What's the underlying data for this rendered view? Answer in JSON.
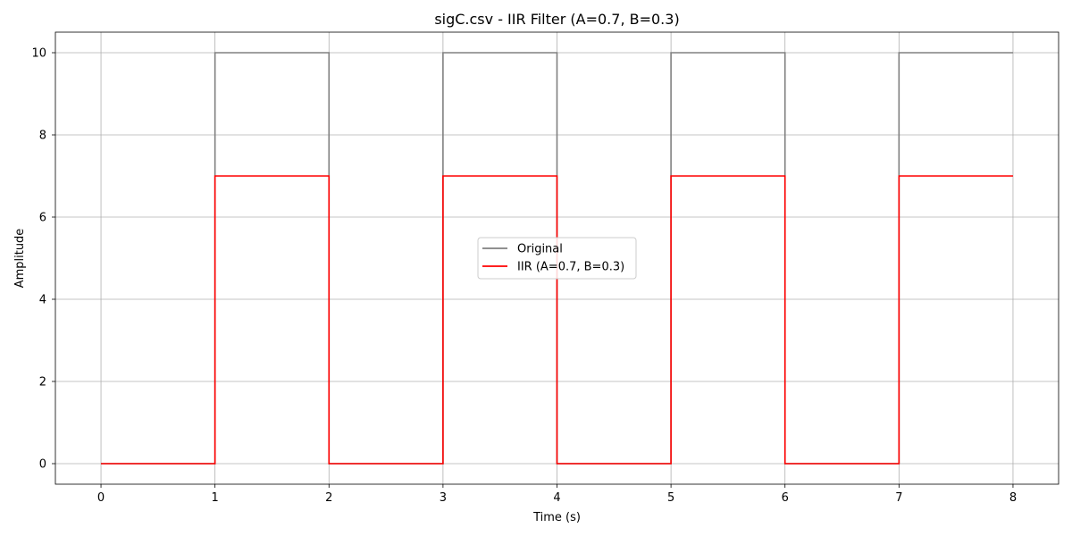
{
  "chart_data": {
    "type": "line",
    "title": "sigC.csv - IIR Filter (A=0.7, B=0.3)",
    "xlabel": "Time (s)",
    "ylabel": "Amplitude",
    "xlim": [
      -0.4,
      8.4
    ],
    "ylim": [
      -0.5,
      10.5
    ],
    "xticks": [
      0,
      1,
      2,
      3,
      4,
      5,
      6,
      7,
      8
    ],
    "yticks": [
      0,
      2,
      4,
      6,
      8,
      10
    ],
    "grid": true,
    "legend_position": "center",
    "series": [
      {
        "name": "Original",
        "color": "#808080",
        "x": [
          0,
          1,
          1,
          2,
          2,
          3,
          3,
          4,
          4,
          5,
          5,
          6,
          6,
          7,
          7,
          8
        ],
        "y": [
          0,
          0,
          10,
          10,
          0,
          0,
          10,
          10,
          0,
          0,
          10,
          10,
          0,
          0,
          10,
          10
        ]
      },
      {
        "name": "IIR (A=0.7, B=0.3)",
        "color": "#ff0000",
        "x": [
          0,
          1,
          1,
          2,
          2,
          3,
          3,
          4,
          4,
          5,
          5,
          6,
          6,
          7,
          7,
          8
        ],
        "y": [
          0,
          0,
          7,
          7,
          0,
          0,
          7,
          7,
          0,
          0,
          7,
          7,
          0,
          0,
          7,
          7
        ]
      }
    ]
  }
}
